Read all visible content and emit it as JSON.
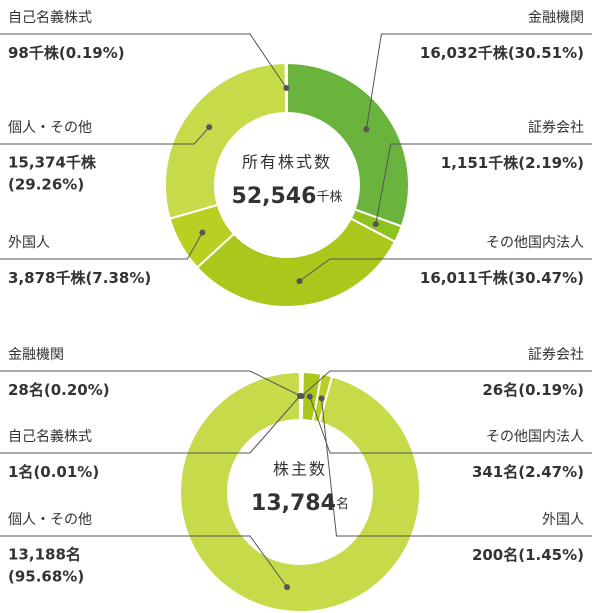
{
  "chart_data": [
    {
      "type": "pie",
      "center_title": "所有株式数",
      "total_label": "52,546",
      "total_unit": "千株",
      "categories": [
        "金融機関",
        "証券会社",
        "その他国内法人",
        "外国人",
        "個人・その他",
        "自己名義株式"
      ],
      "values": [
        16032,
        1151,
        16011,
        3878,
        15374,
        98
      ],
      "value_labels": [
        "16,032千株",
        "1,151千株",
        "16,011千株",
        "3,878千株",
        "15,374千株",
        "98千株"
      ],
      "percent_labels": [
        "(30.51%)",
        "(2.19%)",
        "(30.47%)",
        "(7.38%)",
        "(29.26%)",
        "(0.19%)"
      ],
      "colors": [
        "#6ab43e",
        "#8ec21f",
        "#a9c81b",
        "#b9d022",
        "#c6da4a",
        "#9cc53a"
      ]
    },
    {
      "type": "pie",
      "center_title": "株主数",
      "total_label": "13,784",
      "total_unit": "名",
      "categories": [
        "金融機関",
        "証券会社",
        "その他国内法人",
        "外国人",
        "個人・その他",
        "自己名義株式"
      ],
      "values": [
        28,
        26,
        341,
        200,
        13188,
        1
      ],
      "value_labels": [
        "28名",
        "26名",
        "341名",
        "200名",
        "13,188名",
        "1名"
      ],
      "percent_labels": [
        "(0.20%)",
        "(0.19%)",
        "(2.47%)",
        "(1.45%)",
        "(95.68%)",
        "(0.01%)"
      ],
      "colors": [
        "#6ab43e",
        "#8ec21f",
        "#a9c81b",
        "#b9d022",
        "#c6da4a",
        "#9cc53a"
      ]
    }
  ]
}
